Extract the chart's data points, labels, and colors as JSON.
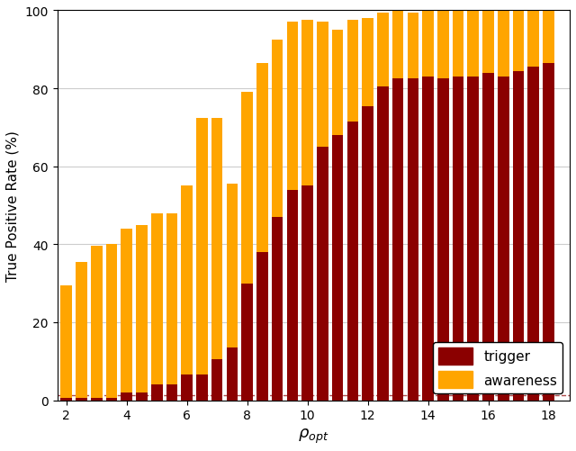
{
  "x": [
    2,
    2.5,
    3,
    3.5,
    4,
    4.5,
    5,
    5.5,
    6,
    6.5,
    7,
    7.5,
    8,
    8.5,
    9,
    9.5,
    10,
    10.5,
    11,
    11.5,
    12,
    12.5,
    13,
    13.5,
    14,
    14.5,
    15,
    15.5,
    16,
    16.5,
    17,
    17.5,
    18
  ],
  "trigger": [
    0.5,
    0.5,
    0.5,
    0.5,
    2.0,
    2.0,
    4.0,
    4.0,
    6.5,
    6.5,
    10.5,
    13.5,
    30.0,
    38.0,
    47.0,
    54.0,
    55.0,
    65.0,
    68.0,
    71.5,
    75.5,
    80.5,
    82.5,
    82.5,
    83.0,
    82.5,
    83.0,
    83.0,
    84.0,
    83.0,
    84.5,
    85.5,
    86.5
  ],
  "awareness_extra": [
    29.0,
    35.0,
    39.0,
    39.5,
    42.0,
    43.0,
    44.0,
    44.0,
    48.5,
    66.0,
    62.0,
    42.0,
    49.0,
    48.5,
    45.5,
    43.0,
    42.5,
    32.0,
    27.0,
    26.0,
    22.5,
    19.0,
    17.5,
    17.0,
    17.0,
    17.5,
    17.0,
    17.0,
    16.0,
    17.0,
    15.5,
    14.5,
    13.5
  ],
  "trigger_color": "#8B0000",
  "awareness_color": "#FFA500",
  "background_color": "#ffffff",
  "xlabel": "$\\rho_{opt}$",
  "ylabel": "True Positive Rate (%)",
  "ylim": [
    0,
    100
  ],
  "bar_width": 0.38,
  "xticks": [
    2,
    4,
    6,
    8,
    10,
    12,
    14,
    16,
    18
  ],
  "yticks": [
    0,
    20,
    40,
    60,
    80,
    100
  ],
  "dashed_y": 1.2
}
